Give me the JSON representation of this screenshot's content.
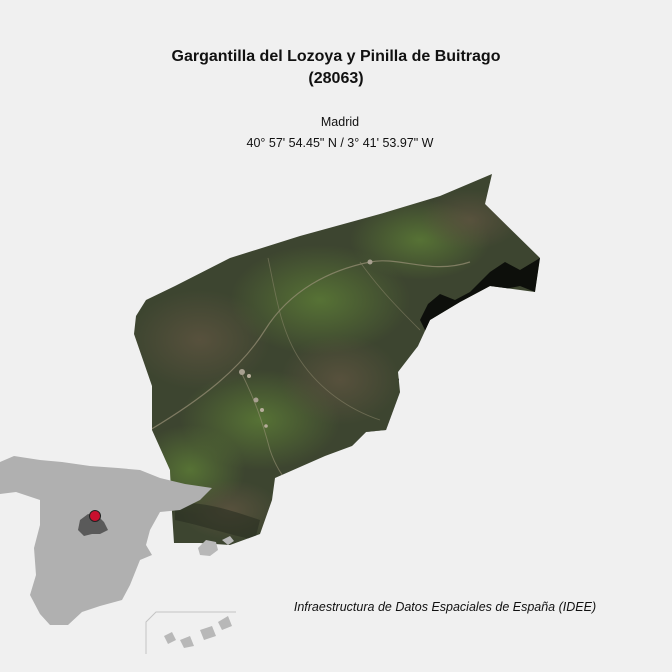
{
  "title": {
    "line1": "Gargantilla del Lozoya y Pinilla de Buitrago",
    "line2": "(28063)"
  },
  "region": "Madrid",
  "coordinates": "40° 57' 54.45\" N / 3° 41' 53.97\" W",
  "credit": "Infraestructura de Datos Espaciales de España (IDEE)",
  "colors": {
    "background": "#f0f0f0",
    "terrain_dark": "#3d4530",
    "terrain_green": "#4f6b32",
    "reservoir": "#0d0f0b",
    "inset_land": "#b0b0b0",
    "inset_region": "#5a5a5a",
    "marker_fill": "#c8102e"
  },
  "inset": {
    "country": "Spain",
    "marker": "municipality-location"
  }
}
